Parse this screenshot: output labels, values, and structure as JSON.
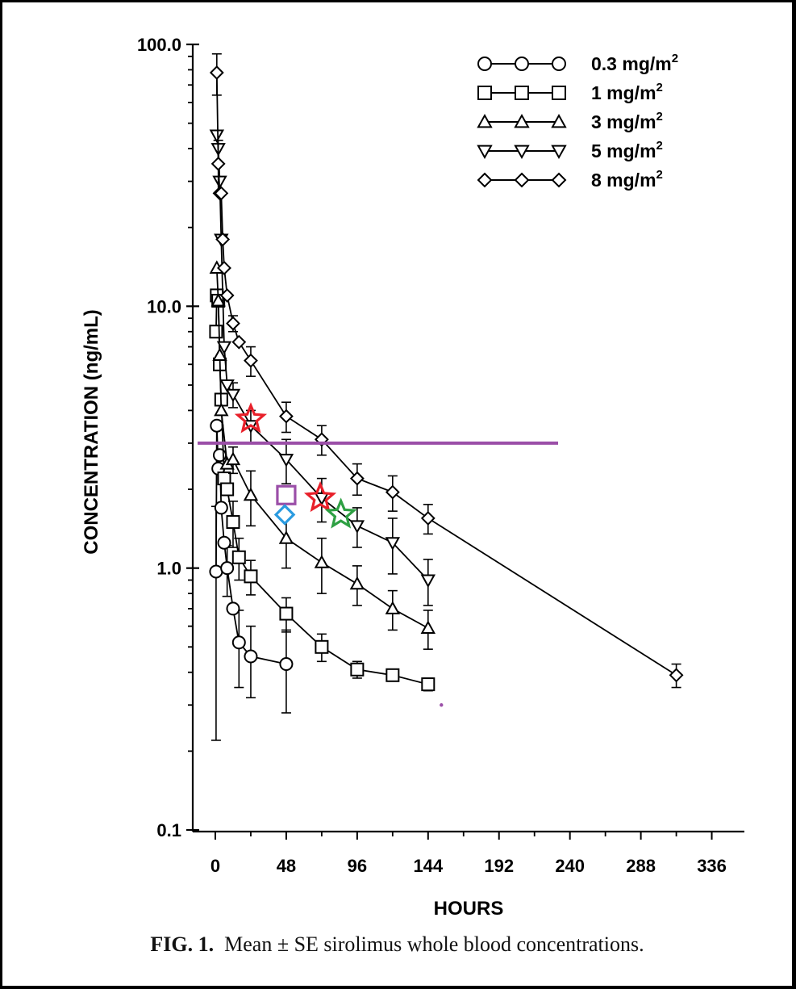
{
  "caption": {
    "label": "FIG. 1.",
    "text": "Mean ± SE sirolimus whole blood concentrations."
  },
  "chart_data": {
    "type": "line",
    "xlabel": "HOURS",
    "ylabel": "CONCENTRATION (ng/mL)",
    "y_scale": "log",
    "xlim": [
      -12,
      348
    ],
    "ylim": [
      0.1,
      100.0
    ],
    "x_ticks": [
      "0",
      "48",
      "96",
      "144",
      "192",
      "240",
      "288",
      "336"
    ],
    "y_ticks": [
      "100.0",
      "10.0",
      "1.0",
      "0.1"
    ],
    "legend_position": "top-right",
    "series": [
      {
        "name": "0.3 mg/m",
        "sup": "2",
        "marker": "circle",
        "points": [
          [
            0.5,
            0.97,
            0.75
          ],
          [
            1,
            3.5,
            0
          ],
          [
            2,
            2.4,
            0
          ],
          [
            3,
            2.7,
            0
          ],
          [
            4,
            1.7,
            0
          ],
          [
            6,
            1.25,
            0
          ],
          [
            8,
            1.0,
            0.22
          ],
          [
            12,
            0.7,
            0
          ],
          [
            16,
            0.52,
            0.17
          ],
          [
            24,
            0.46,
            0.14
          ],
          [
            48,
            0.43,
            0.15
          ]
        ]
      },
      {
        "name": "1 mg/m",
        "sup": "2",
        "marker": "square",
        "points": [
          [
            0.5,
            8.0,
            0
          ],
          [
            1,
            11.0,
            0
          ],
          [
            2,
            10.5,
            0
          ],
          [
            3,
            6.0,
            0
          ],
          [
            4,
            4.4,
            0
          ],
          [
            6,
            2.2,
            0
          ],
          [
            8,
            2.0,
            0
          ],
          [
            12,
            1.5,
            0.3
          ],
          [
            16,
            1.1,
            0.2
          ],
          [
            24,
            0.93,
            0.14
          ],
          [
            48,
            0.67,
            0.1
          ],
          [
            72,
            0.5,
            0.06
          ],
          [
            96,
            0.41,
            0.03
          ],
          [
            120,
            0.39,
            0.02
          ],
          [
            144,
            0.36,
            0.02
          ]
        ]
      },
      {
        "name": "3 mg/m",
        "sup": "2",
        "marker": "triangle-up",
        "points": [
          [
            1,
            14.0,
            0
          ],
          [
            2,
            10.5,
            0
          ],
          [
            3,
            6.5,
            0
          ],
          [
            4,
            4.0,
            0
          ],
          [
            8,
            2.5,
            0
          ],
          [
            12,
            2.6,
            0.3
          ],
          [
            24,
            1.9,
            0.45
          ],
          [
            48,
            1.3,
            0.3
          ],
          [
            72,
            1.05,
            0.25
          ],
          [
            96,
            0.87,
            0.15
          ],
          [
            120,
            0.7,
            0.12
          ],
          [
            144,
            0.59,
            0.1
          ]
        ]
      },
      {
        "name": "5 mg/m",
        "sup": "2",
        "marker": "triangle-down",
        "points": [
          [
            1,
            45.0,
            0
          ],
          [
            2,
            40.0,
            0
          ],
          [
            3,
            30.0,
            0
          ],
          [
            4,
            18.0,
            0
          ],
          [
            6,
            7.0,
            0
          ],
          [
            8,
            5.0,
            0
          ],
          [
            12,
            4.6,
            0.5
          ],
          [
            24,
            3.5,
            0.5
          ],
          [
            48,
            2.6,
            0.5
          ],
          [
            72,
            1.85,
            0.35
          ],
          [
            96,
            1.45,
            0.25
          ],
          [
            120,
            1.25,
            0.3
          ],
          [
            144,
            0.9,
            0.18
          ]
        ]
      },
      {
        "name": "8 mg/m",
        "sup": "2",
        "marker": "diamond",
        "points": [
          [
            1,
            78.0,
            14
          ],
          [
            2,
            35.0,
            8
          ],
          [
            3,
            27.0,
            0
          ],
          [
            4,
            27.0,
            0
          ],
          [
            5,
            18.0,
            0
          ],
          [
            6,
            14.0,
            0
          ],
          [
            8,
            11.0,
            0
          ],
          [
            12,
            8.6,
            0.6
          ],
          [
            16,
            7.3,
            0
          ],
          [
            24,
            6.2,
            0.8
          ],
          [
            48,
            3.8,
            0.5
          ],
          [
            72,
            3.1,
            0.4
          ],
          [
            96,
            2.2,
            0.3
          ],
          [
            120,
            1.95,
            0.3
          ],
          [
            144,
            1.55,
            0.2
          ],
          [
            312,
            0.39,
            0.04
          ]
        ]
      }
    ],
    "overlays": {
      "hline": {
        "y": 3.0,
        "x_from": -12,
        "x_to": 232,
        "color": "#9b4fa8"
      },
      "markers": [
        {
          "shape": "star",
          "x": 24,
          "y": 3.7,
          "color": "#e8202a"
        },
        {
          "shape": "star",
          "x": 71,
          "y": 1.85,
          "color": "#e8202a"
        },
        {
          "shape": "star",
          "x": 85,
          "y": 1.6,
          "color": "#2ea043"
        },
        {
          "shape": "square",
          "x": 48,
          "y": 1.9,
          "color": "#9b4fa8"
        },
        {
          "shape": "diamond",
          "x": 47,
          "y": 1.6,
          "color": "#2b9be0"
        },
        {
          "shape": "dot",
          "x": 153,
          "y": 0.3,
          "color": "#9b4fa8"
        }
      ]
    }
  }
}
